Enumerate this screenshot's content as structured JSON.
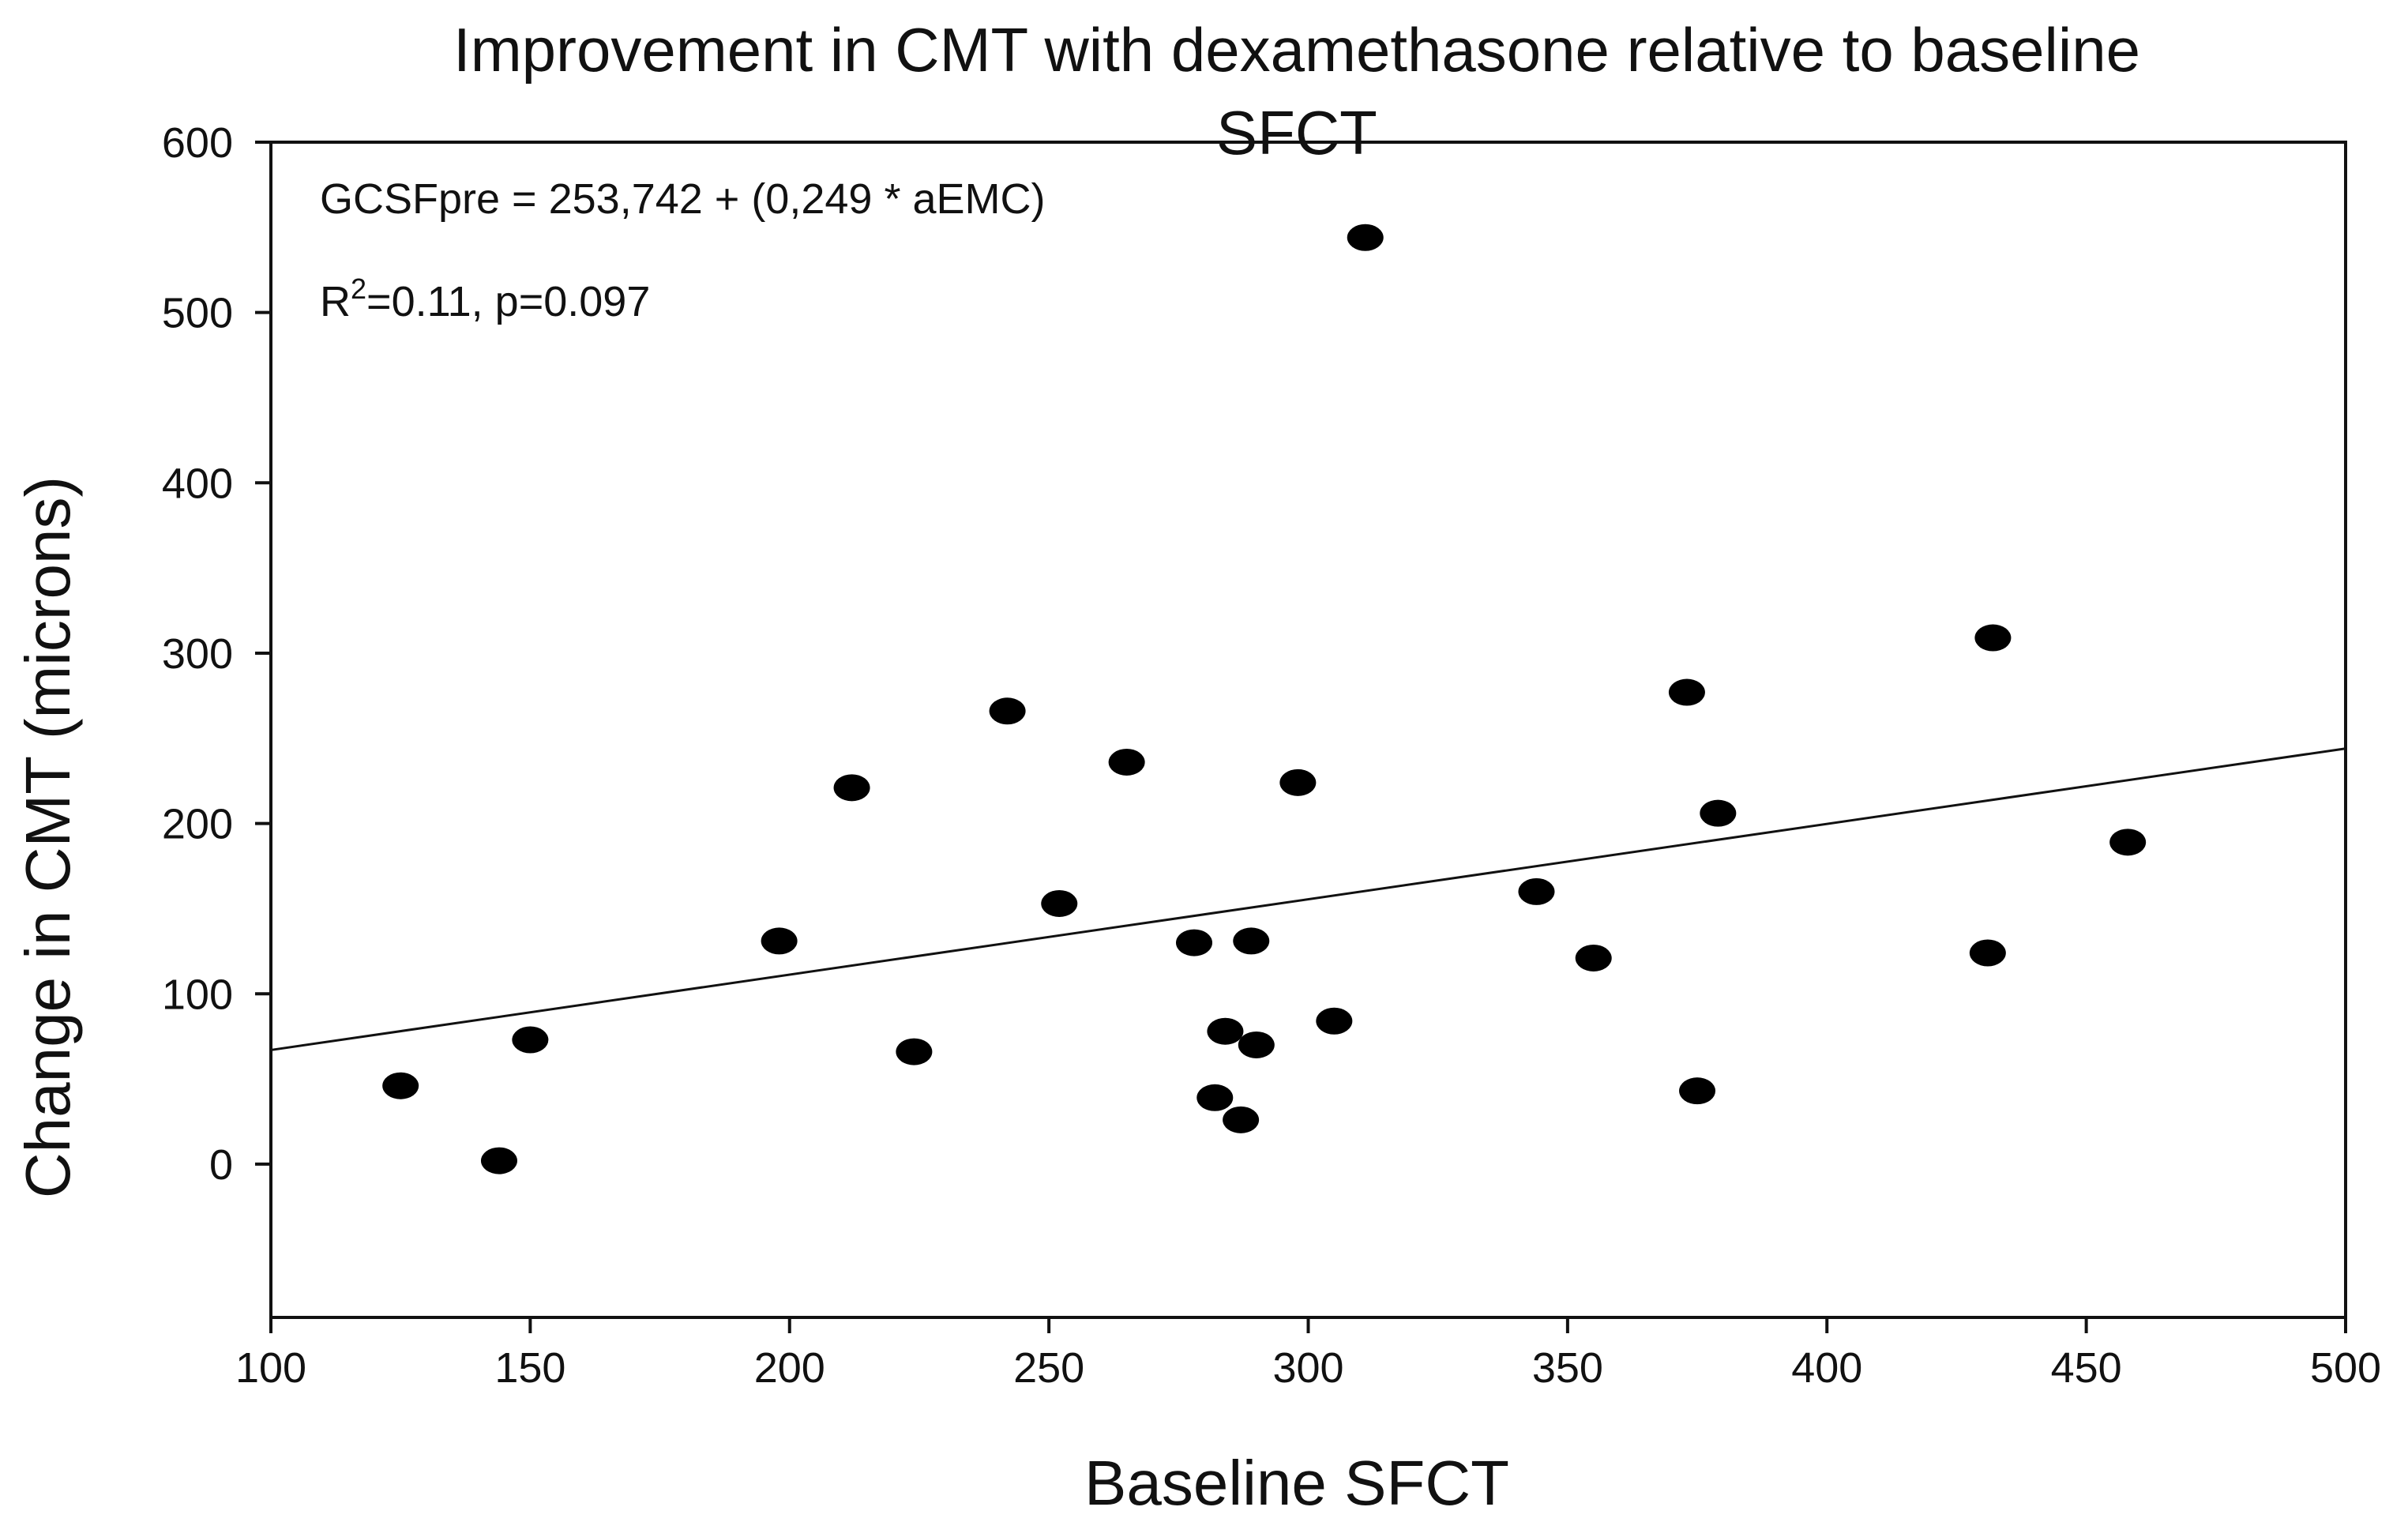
{
  "chart_data": {
    "type": "scatter",
    "title": "Improvement in CMT with dexamethasone relative to baseline SFCT",
    "title_lines": [
      "Improvement in CMT with dexamethasone relative to baseline",
      "SFCT"
    ],
    "xlabel": "Baseline SFCT",
    "ylabel": "Change in CMT (microns)",
    "xlim": [
      100,
      500
    ],
    "ylim": [
      -90,
      600
    ],
    "x_ticks": [
      100,
      150,
      200,
      250,
      300,
      350,
      400,
      450,
      500
    ],
    "y_ticks": [
      0,
      100,
      200,
      300,
      400,
      500,
      600
    ],
    "x_tick_labels": [
      "100",
      "150",
      "200",
      "250",
      "300",
      "350",
      "400",
      "450",
      "500"
    ],
    "y_tick_labels": [
      "0",
      "100",
      "200",
      "300",
      "400",
      "500",
      "600"
    ],
    "grid": false,
    "legend": "none",
    "annotations": {
      "equation": "GCSFpre = 253,742 + (0,249 * aEMC)",
      "r2_prefix": "R",
      "r2_superscript": "2",
      "r2_rest": "=0.11, p=0.097"
    },
    "regression_line": {
      "x": [
        100,
        500
      ],
      "y": [
        67,
        244
      ]
    },
    "points": [
      {
        "x": 125,
        "y": 46
      },
      {
        "x": 144,
        "y": 2
      },
      {
        "x": 150,
        "y": 73
      },
      {
        "x": 198,
        "y": 131
      },
      {
        "x": 212,
        "y": 221
      },
      {
        "x": 224,
        "y": 66
      },
      {
        "x": 242,
        "y": 266
      },
      {
        "x": 252,
        "y": 153
      },
      {
        "x": 265,
        "y": 236
      },
      {
        "x": 278,
        "y": 130
      },
      {
        "x": 282,
        "y": 39
      },
      {
        "x": 284,
        "y": 78
      },
      {
        "x": 287,
        "y": 26
      },
      {
        "x": 289,
        "y": 131
      },
      {
        "x": 290,
        "y": 70
      },
      {
        "x": 298,
        "y": 224
      },
      {
        "x": 305,
        "y": 84
      },
      {
        "x": 311,
        "y": 544
      },
      {
        "x": 344,
        "y": 160
      },
      {
        "x": 355,
        "y": 121
      },
      {
        "x": 373,
        "y": 277
      },
      {
        "x": 375,
        "y": 43
      },
      {
        "x": 379,
        "y": 206
      },
      {
        "x": 431,
        "y": 124
      },
      {
        "x": 432,
        "y": 309
      },
      {
        "x": 458,
        "y": 189
      }
    ],
    "marker_color": "#000000",
    "line_color": "#111111"
  }
}
